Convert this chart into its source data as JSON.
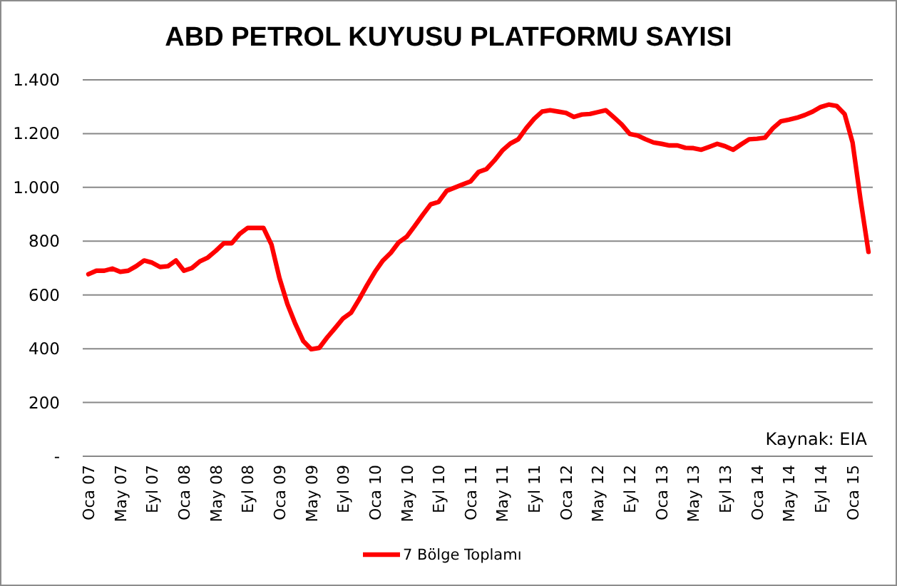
{
  "chart_data": {
    "type": "line",
    "title": "ABD PETROL KUYUSU PLATFORMU SAYISI",
    "categories": [
      "Oca 07",
      null,
      null,
      null,
      "May 07",
      null,
      null,
      null,
      "Eyl 07",
      null,
      null,
      null,
      "Oca 08",
      null,
      null,
      null,
      "May 08",
      null,
      null,
      null,
      "Eyl 08",
      null,
      null,
      null,
      "Oca 09",
      null,
      null,
      null,
      "May 09",
      null,
      null,
      null,
      "Eyl 09",
      null,
      null,
      null,
      "Oca 10",
      null,
      null,
      null,
      "May 10",
      null,
      null,
      null,
      "Eyl 10",
      null,
      null,
      null,
      "Oca 11",
      null,
      null,
      null,
      "May 11",
      null,
      null,
      null,
      "Eyl 11",
      null,
      null,
      null,
      "Oca 12",
      null,
      null,
      null,
      "May 12",
      null,
      null,
      null,
      "Eyl 12",
      null,
      null,
      null,
      "Oca 13",
      null,
      null,
      null,
      "May 13",
      null,
      null,
      null,
      "Eyl 13",
      null,
      null,
      null,
      "Oca 14",
      null,
      null,
      null,
      "May 14",
      null,
      null,
      null,
      "Eyl 14",
      null,
      null,
      null,
      "Oca 15",
      null,
      null
    ],
    "series": [
      {
        "name": "7 Bölge Toplamı",
        "color": "#ff0000",
        "values": [
          677,
          690,
          690,
          698,
          686,
          690,
          707,
          728,
          720,
          704,
          707,
          728,
          690,
          700,
          725,
          739,
          764,
          792,
          792,
          827,
          849,
          849,
          849,
          787,
          663,
          566,
          492,
          428,
          398,
          403,
          442,
          477,
          513,
          534,
          583,
          636,
          686,
          728,
          757,
          796,
          817,
          857,
          898,
          937,
          946,
          987,
          999,
          1011,
          1022,
          1057,
          1068,
          1100,
          1137,
          1163,
          1179,
          1220,
          1255,
          1282,
          1287,
          1282,
          1277,
          1262,
          1271,
          1273,
          1280,
          1287,
          1261,
          1234,
          1199,
          1193,
          1179,
          1167,
          1162,
          1156,
          1156,
          1147,
          1146,
          1140,
          1151,
          1162,
          1153,
          1140,
          1160,
          1179,
          1181,
          1185,
          1220,
          1246,
          1252,
          1259,
          1269,
          1282,
          1299,
          1308,
          1303,
          1273,
          1167,
          955,
          760
        ]
      }
    ],
    "ylim": [
      0,
      1400
    ],
    "yticks": [
      {
        "value": 0,
        "label": "-"
      },
      200,
      400,
      600,
      800,
      {
        "value": 1000,
        "label": "1.000"
      },
      {
        "value": 1200,
        "label": "1.200"
      },
      {
        "value": 1400,
        "label": "1.400"
      }
    ],
    "grid": "y",
    "legend": "bottom",
    "marker": "none",
    "line_style": "solid",
    "annotations": [
      "Kaynak: EIA"
    ]
  }
}
